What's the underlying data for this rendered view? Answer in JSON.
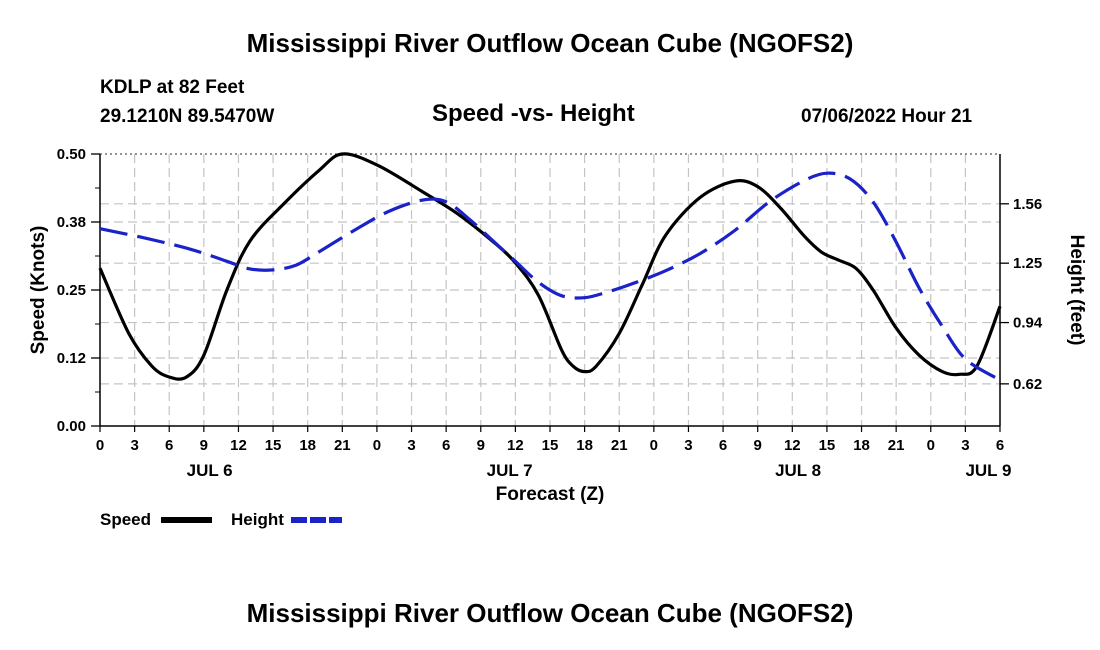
{
  "page": {
    "title_top": "Mississippi River Outflow Ocean Cube (NGOFS2)",
    "title_bottom": "Mississippi River Outflow Ocean Cube (NGOFS2)",
    "station": "KDLP at 82 Feet",
    "coords": "29.1210N  89.5470W",
    "subtitle": "Speed -vs- Height",
    "timestamp": "07/06/2022 Hour 21"
  },
  "chart_data": {
    "type": "line",
    "title": "Speed -vs- Height",
    "xlabel": "Forecast (Z)",
    "ylabel_left": "Speed (Knots)",
    "ylabel_right": "Height (feet)",
    "x_range_hours": [
      0,
      78
    ],
    "x_ticks": [
      "0",
      "3",
      "6",
      "9",
      "12",
      "15",
      "18",
      "21",
      "0",
      "3",
      "6",
      "9",
      "12",
      "15",
      "18",
      "21",
      "0",
      "3",
      "6",
      "9",
      "12",
      "15",
      "18",
      "21",
      "0",
      "3",
      "6"
    ],
    "date_labels": [
      {
        "label": "JUL 6",
        "hour": 9.5
      },
      {
        "label": "JUL 7",
        "hour": 35.5
      },
      {
        "label": "JUL 8",
        "hour": 60.5
      },
      {
        "label": "JUL 9",
        "hour": 77
      }
    ],
    "y_left": {
      "range": [
        0,
        0.5
      ],
      "ticks": [
        "0.00",
        "0.12",
        "0.25",
        "0.38",
        "0.50"
      ],
      "tick_values": [
        0,
        0.125,
        0.25,
        0.375,
        0.5
      ]
    },
    "y_right": {
      "range": [
        0.4,
        1.82
      ],
      "ticks": [
        "0.62",
        "0.94",
        "1.25",
        "1.56"
      ],
      "tick_values": [
        0.62,
        0.94,
        1.25,
        1.56
      ]
    },
    "legend": [
      {
        "name": "Speed",
        "color": "#000000",
        "style": "solid"
      },
      {
        "name": "Height",
        "color": "#1a22c8",
        "style": "dashed"
      }
    ],
    "series": [
      {
        "name": "Speed",
        "axis": "left",
        "color": "#000000",
        "dash": "",
        "x": [
          0,
          2.5,
          4.5,
          6,
          7.5,
          9,
          11,
          13,
          16,
          19,
          21,
          24,
          28,
          31,
          34,
          36,
          38,
          40,
          41,
          42,
          43,
          45,
          47,
          49,
          52,
          55,
          57,
          59,
          61,
          62.5,
          64,
          65.5,
          67,
          69,
          71,
          73,
          74.5,
          76,
          78
        ],
        "y": [
          0.29,
          0.17,
          0.11,
          0.09,
          0.09,
          0.13,
          0.25,
          0.34,
          0.41,
          0.47,
          0.5,
          0.48,
          0.43,
          0.39,
          0.34,
          0.3,
          0.24,
          0.14,
          0.11,
          0.1,
          0.11,
          0.17,
          0.26,
          0.35,
          0.42,
          0.45,
          0.44,
          0.4,
          0.35,
          0.32,
          0.305,
          0.29,
          0.25,
          0.18,
          0.13,
          0.1,
          0.095,
          0.11,
          0.22
        ]
      },
      {
        "name": "Height",
        "axis": "right",
        "color": "#1a22c8",
        "dash": "28,10",
        "x": [
          0,
          4,
          8,
          11,
          13,
          15,
          17,
          19,
          22,
          25,
          28,
          30,
          32,
          34,
          36,
          38,
          40,
          42,
          44,
          46,
          49,
          52,
          55,
          58,
          61,
          63,
          65,
          67,
          69,
          71,
          73,
          75,
          78
        ],
        "y": [
          1.43,
          1.38,
          1.32,
          1.26,
          1.22,
          1.215,
          1.24,
          1.31,
          1.42,
          1.52,
          1.58,
          1.57,
          1.48,
          1.37,
          1.26,
          1.15,
          1.08,
          1.07,
          1.1,
          1.14,
          1.21,
          1.3,
          1.42,
          1.57,
          1.68,
          1.72,
          1.69,
          1.57,
          1.36,
          1.12,
          0.92,
          0.75,
          0.64
        ]
      }
    ]
  }
}
